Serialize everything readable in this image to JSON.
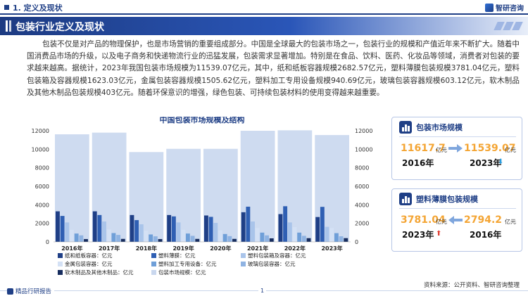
{
  "header": {
    "section": "1. 定义及现状",
    "logo": "智研咨询"
  },
  "banner": {
    "title": "包装行业定义及现状"
  },
  "paragraph": "包装不仅是对产品的物理保护，也是市场营销的重要组成部分。中国是全球最大的包装市场之一，包装行业的规模和产值近年来不断扩大。随着中国消费品市场的升级，以及电子商务和快递物流行业的迅猛发展，包装需求显著增加。特别是在食品、饮料、医药、化妆品等领域，消费者对包装的要求越来越高。据统计，2023年我国包装市场规模为11539.07亿元，其中，纸和纸板容器规模2682.57亿元，塑料薄膜包装规模3781.04亿元，塑料包装箱及容器规模1623.03亿元，金属包装容器规模1505.62亿元，塑料加工专用设备规模940.69亿元，玻璃包装容器规模603.12亿元，软木制品及其他木制品包装规模403亿元。随着环保意识的增强，绿色包装、可持续包装材料的使用变得越来越重要。",
  "chart_data": {
    "type": "bar",
    "title": "中国包装市场规模及结构",
    "categories": [
      "2016年",
      "2017年",
      "2018年",
      "2019年",
      "2020年",
      "2021年",
      "2022年",
      "2023年"
    ],
    "ylim_left": [
      0,
      12000
    ],
    "ylim_right": [
      0,
      12000
    ],
    "yticks": [
      "0",
      "2000",
      "4000",
      "6000",
      "8000",
      "10000",
      "12000"
    ],
    "series": [
      {
        "name": "纸和纸板容器：亿元",
        "axis": "left",
        "color": "#1f3f86",
        "values": [
          3300,
          3300,
          2900,
          2900,
          2850,
          3200,
          3000,
          2682.57
        ]
      },
      {
        "name": "塑料薄膜：亿元",
        "axis": "left",
        "color": "#2f5fb3",
        "values": [
          2800,
          2900,
          2350,
          2750,
          2700,
          3800,
          3850,
          3781.04
        ]
      },
      {
        "name": "塑料包装箱及容器：亿元",
        "axis": "left",
        "color": "#a9c4ea",
        "values": [
          2100,
          2200,
          1900,
          2100,
          2050,
          2200,
          2100,
          1623.03
        ]
      },
      {
        "name": "金属包装容器：亿元",
        "axis": "left",
        "color": "#d4e1f5",
        "values": [
          1300,
          1350,
          1200,
          1300,
          1250,
          1500,
          1600,
          1505.62
        ]
      },
      {
        "name": "塑料加工专用设备：亿元",
        "axis": "left",
        "color": "#6f9fd8",
        "values": [
          900,
          950,
          800,
          900,
          850,
          1000,
          1000,
          940.69
        ]
      },
      {
        "name": "玻璃包装容器：亿元",
        "axis": "left",
        "color": "#8fb3e2",
        "values": [
          700,
          750,
          600,
          650,
          620,
          700,
          650,
          603.12
        ]
      },
      {
        "name": "软木制品及其他木制品：亿元",
        "axis": "left",
        "color": "#162c5e",
        "values": [
          300,
          320,
          300,
          320,
          320,
          380,
          400,
          403
        ]
      },
      {
        "name": "包装市场规模：亿元",
        "axis": "right",
        "color": "#c9d7ee",
        "values": [
          11617.7,
          11800,
          9700,
          10050,
          10050,
          12000,
          12050,
          11539.07
        ]
      }
    ]
  },
  "cards": [
    {
      "title": "包装市场规模",
      "v1": "11617.7",
      "u1": "亿元",
      "y1": "2016年",
      "v2": "11539.07",
      "u2": "亿元",
      "y2": "2023年",
      "trend": "down"
    },
    {
      "title": "塑料薄膜包装规模",
      "v1": "3781.04",
      "u1": "亿元",
      "y1": "2023年",
      "v2": "2794.2",
      "u2": "亿元",
      "y2": "2016年",
      "trend": "up"
    }
  ],
  "source": "资料来源：公开资料、智研咨询整理",
  "footer": {
    "logo": "精品行研报告",
    "page": "1"
  }
}
